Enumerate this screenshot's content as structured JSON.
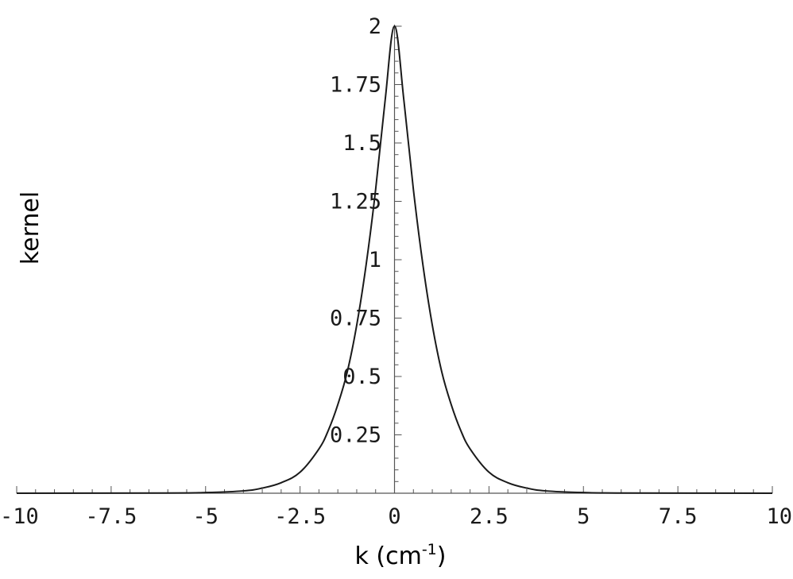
{
  "chart_data": {
    "type": "line",
    "title": "",
    "xlabel": "k (cm",
    "xlabel_sup": "-1",
    "xlabel_close": ")",
    "ylabel": "kernel",
    "xlim": [
      -10,
      10
    ],
    "ylim": [
      0,
      2
    ],
    "x_ticks": [
      -10,
      -7.5,
      -5,
      -2.5,
      0,
      2.5,
      5,
      7.5,
      10
    ],
    "x_tick_labels": [
      "-10",
      "-7.5",
      "-5",
      "-2.5",
      "0",
      "2.5",
      "5",
      "7.5",
      "10"
    ],
    "y_ticks": [
      0.25,
      0.5,
      0.75,
      1,
      1.25,
      1.5,
      1.75,
      2
    ],
    "y_tick_labels": [
      "0.25",
      "0.5",
      "0.75",
      "1",
      "1.25",
      "1.5",
      "1.75",
      "2"
    ],
    "grid": false,
    "series": [
      {
        "color": "#1a1a1a",
        "x": [
          -10,
          -6,
          -5,
          -4,
          -3.5,
          -3,
          -2.5,
          -2,
          -1.75,
          -1.5,
          -1.25,
          -1,
          -0.75,
          -0.5,
          -0.25,
          0,
          0.25,
          0.5,
          0.75,
          1,
          1.25,
          1.5,
          1.75,
          2,
          2.5,
          3,
          3.5,
          4,
          5,
          6,
          10
        ],
        "y": [
          0,
          0.001,
          0.003,
          0.01,
          0.022,
          0.045,
          0.09,
          0.19,
          0.27,
          0.38,
          0.52,
          0.72,
          0.98,
          1.3,
          1.68,
          2.0,
          1.68,
          1.3,
          0.98,
          0.72,
          0.52,
          0.38,
          0.27,
          0.19,
          0.09,
          0.045,
          0.022,
          0.01,
          0.003,
          0.001,
          0
        ]
      }
    ]
  }
}
